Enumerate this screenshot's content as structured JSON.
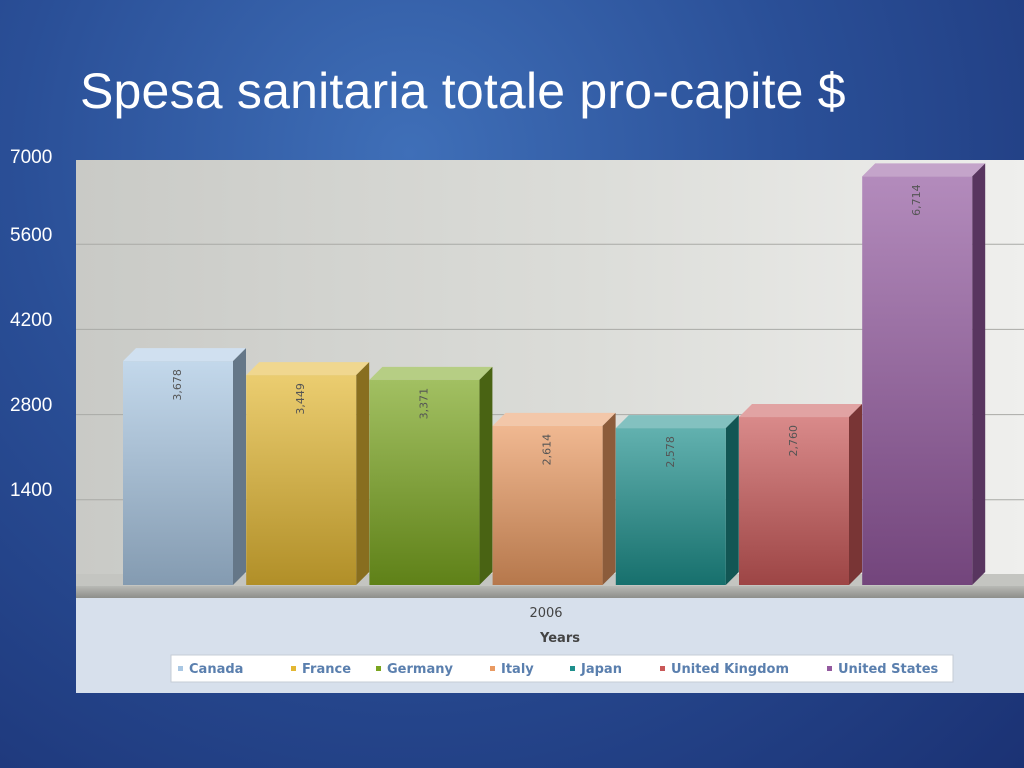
{
  "slide": {
    "title": "Spesa sanitaria totale pro-capite $"
  },
  "chart_data": {
    "type": "bar",
    "title": "Spesa sanitaria totale pro-capite $",
    "categories": [
      "2006"
    ],
    "xlabel": "Years",
    "ylabel": "",
    "ylim": [
      0,
      7000
    ],
    "y_ticks": [
      "7000",
      "5600",
      "4200",
      "2800",
      "1400"
    ],
    "grid": true,
    "legend_position": "bottom",
    "series": [
      {
        "name": "Canada",
        "values": [
          3678
        ],
        "label": "3,678",
        "color": "#a9c7e3"
      },
      {
        "name": "France",
        "values": [
          3449
        ],
        "label": "3,449",
        "color": "#e3b733"
      },
      {
        "name": "Germany",
        "values": [
          3371
        ],
        "label": "3,371",
        "color": "#7aa51f"
      },
      {
        "name": "Italy",
        "values": [
          2614
        ],
        "label": "2,614",
        "color": "#e99a62"
      },
      {
        "name": "Japan",
        "values": [
          2578
        ],
        "label": "2,578",
        "color": "#1e8f8c"
      },
      {
        "name": "United Kingdom",
        "values": [
          2760
        ],
        "label": "2,760",
        "color": "#c95858"
      },
      {
        "name": "United States",
        "values": [
          6714
        ],
        "label": "6,714",
        "color": "#93599f"
      }
    ]
  }
}
